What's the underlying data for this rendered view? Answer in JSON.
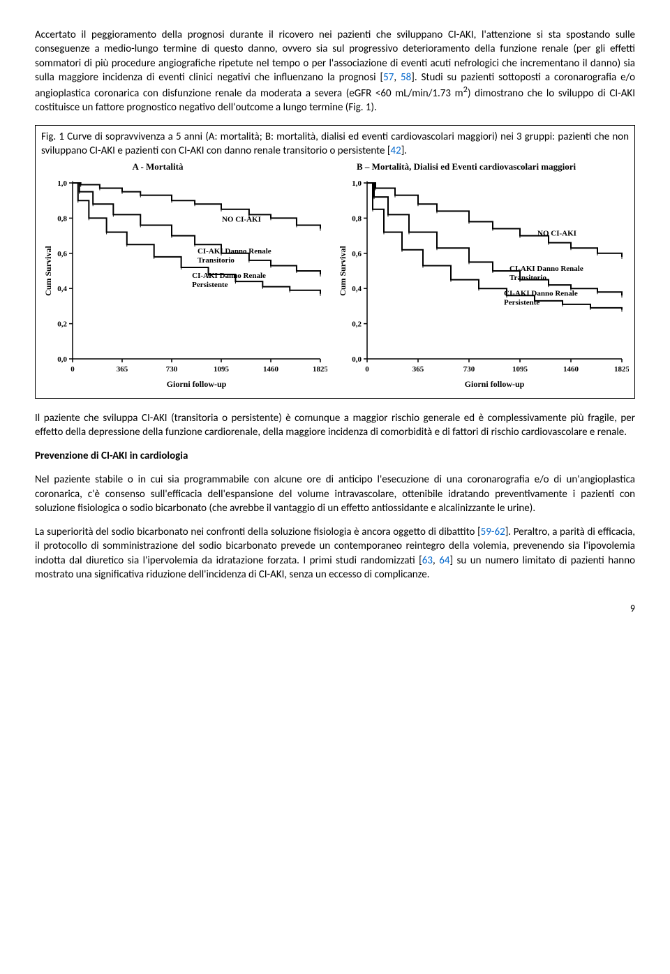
{
  "para1_a": "Accertato il peggioramento della prognosi durante il ricovero nei pazienti che sviluppano CI-AKI, l'attenzione si sta spostando sulle conseguenze a medio-lungo termine di questo danno, ovvero sia sul progressivo deterioramento della funzione renale (per gli effetti sommatori di più procedure angiografiche ripetute nel tempo o per l'associazione di eventi acuti nefrologici che incrementano il danno) sia sulla maggiore incidenza di eventi clinici negativi che influenzano la prognosi [",
  "para1_ref1": "57",
  "para1_b": ", ",
  "para1_ref2": "58",
  "para1_c": "]. Studi su pazienti sottoposti a coronarografia e/o angioplastica coronarica con disfunzione renale da moderata a severa (eGFR <60 mL/min/1.73 m",
  "para1_sup": "2",
  "para1_d": ") dimostrano che lo sviluppo di CI-AKI costituisce un fattore prognostico negativo dell'outcome a lungo termine (Fig. 1).",
  "figcap_a": "Fig. 1 Curve di sopravvivenza a 5 anni (A: mortalità; B: mortalità, dialisi ed eventi cardiovascolari maggiori) nei 3 gruppi: pazienti che non sviluppano CI-AKI e pazienti con CI-AKI con danno renale transitorio o persistente [",
  "figcap_ref": "42",
  "figcap_b": "].",
  "chartA": {
    "title": "A - Mortalità",
    "ylabel": "Cum Survival",
    "xlabel": "Giorni follow-up",
    "xlim": [
      0,
      1825
    ],
    "ylim": [
      0,
      1.0
    ],
    "xticks": [
      0,
      365,
      730,
      1095,
      1460,
      1825
    ],
    "yticks": [
      0.0,
      0.2,
      0.4,
      0.6,
      0.8,
      1.0
    ],
    "yticklabels": [
      "0,0",
      "0,2",
      "0,4",
      "0,6",
      "0,8",
      "1,0"
    ],
    "series": [
      {
        "label": "NO CI-AKI",
        "label_x": 1100,
        "label_y": 0.78,
        "pts": [
          [
            0,
            1.0
          ],
          [
            60,
            0.99
          ],
          [
            200,
            0.97
          ],
          [
            365,
            0.95
          ],
          [
            500,
            0.93
          ],
          [
            730,
            0.9
          ],
          [
            900,
            0.88
          ],
          [
            1095,
            0.85
          ],
          [
            1300,
            0.82
          ],
          [
            1460,
            0.8
          ],
          [
            1650,
            0.76
          ],
          [
            1825,
            0.74
          ]
        ]
      },
      {
        "label": "CI-AKI Danno Renale Transitorio",
        "label_x": 920,
        "label_y": 0.6,
        "pts": [
          [
            0,
            1.0
          ],
          [
            50,
            0.95
          ],
          [
            150,
            0.88
          ],
          [
            300,
            0.82
          ],
          [
            500,
            0.76
          ],
          [
            730,
            0.7
          ],
          [
            900,
            0.65
          ],
          [
            1095,
            0.6
          ],
          [
            1300,
            0.56
          ],
          [
            1460,
            0.53
          ],
          [
            1650,
            0.5
          ],
          [
            1825,
            0.48
          ]
        ]
      },
      {
        "label": "CI-AKI Danno Renale Persistente",
        "label_x": 880,
        "label_y": 0.46,
        "pts": [
          [
            0,
            1.0
          ],
          [
            40,
            0.9
          ],
          [
            120,
            0.8
          ],
          [
            250,
            0.72
          ],
          [
            400,
            0.65
          ],
          [
            600,
            0.58
          ],
          [
            800,
            0.52
          ],
          [
            1000,
            0.48
          ],
          [
            1200,
            0.44
          ],
          [
            1400,
            0.41
          ],
          [
            1600,
            0.39
          ],
          [
            1825,
            0.37
          ]
        ]
      }
    ],
    "line_color": "#000000",
    "line_width": 2,
    "axis_color": "#000000",
    "bg": "#ffffff",
    "font_family": "Times New Roman",
    "tick_fontsize": 11,
    "label_fontsize": 12
  },
  "chartB": {
    "title": "B – Mortalità, Dialisi ed Eventi cardiovascolari maggiori",
    "ylabel": "Cum Survival",
    "xlabel": "Giorni follow-up",
    "xlim": [
      0,
      1825
    ],
    "ylim": [
      0,
      1.0
    ],
    "xticks": [
      0,
      365,
      730,
      1095,
      1460,
      1825
    ],
    "yticks": [
      0.0,
      0.2,
      0.4,
      0.6,
      0.8,
      1.0
    ],
    "yticklabels": [
      "0,0",
      "0,2",
      "0,4",
      "0,6",
      "0,8",
      "1,0"
    ],
    "series": [
      {
        "label": "NO CI-AKI",
        "label_x": 1220,
        "label_y": 0.7,
        "pts": [
          [
            0,
            1.0
          ],
          [
            60,
            0.97
          ],
          [
            200,
            0.93
          ],
          [
            365,
            0.88
          ],
          [
            500,
            0.84
          ],
          [
            730,
            0.78
          ],
          [
            900,
            0.74
          ],
          [
            1095,
            0.7
          ],
          [
            1300,
            0.66
          ],
          [
            1460,
            0.63
          ],
          [
            1650,
            0.6
          ],
          [
            1825,
            0.58
          ]
        ]
      },
      {
        "label": "CI-AKI Danno Renale Transitorio",
        "label_x": 1020,
        "label_y": 0.5,
        "pts": [
          [
            0,
            1.0
          ],
          [
            50,
            0.92
          ],
          [
            150,
            0.82
          ],
          [
            300,
            0.72
          ],
          [
            500,
            0.63
          ],
          [
            730,
            0.55
          ],
          [
            900,
            0.5
          ],
          [
            1095,
            0.45
          ],
          [
            1300,
            0.42
          ],
          [
            1460,
            0.4
          ],
          [
            1650,
            0.38
          ],
          [
            1825,
            0.36
          ]
        ]
      },
      {
        "label": "CI-AKI Danno Renale Persistente",
        "label_x": 980,
        "label_y": 0.36,
        "pts": [
          [
            0,
            1.0
          ],
          [
            40,
            0.85
          ],
          [
            120,
            0.72
          ],
          [
            250,
            0.62
          ],
          [
            400,
            0.53
          ],
          [
            600,
            0.45
          ],
          [
            800,
            0.4
          ],
          [
            1000,
            0.36
          ],
          [
            1200,
            0.33
          ],
          [
            1400,
            0.31
          ],
          [
            1600,
            0.29
          ],
          [
            1825,
            0.28
          ]
        ]
      }
    ],
    "line_color": "#000000",
    "line_width": 2,
    "axis_color": "#000000",
    "bg": "#ffffff",
    "font_family": "Times New Roman",
    "tick_fontsize": 11,
    "label_fontsize": 12
  },
  "para2": "Il paziente che sviluppa CI-AKI (transitoria o persistente) è comunque a maggior rischio generale ed è complessivamente più fragile, per effetto della depressione della funzione cardiorenale, della maggiore incidenza di comorbidità e di fattori di rischio cardiovascolare e renale.",
  "heading": "Prevenzione di CI-AKI in cardiologia",
  "para3": "Nel paziente stabile o in cui sia programmabile con alcune ore di anticipo l'esecuzione di una coronarografia e/o di un'angioplastica coronarica, c'è consenso sull'efficacia dell'espansione del volume intravascolare, ottenibile idratando preventivamente i pazienti con soluzione fisiologica o sodio bicarbonato (che avrebbe il vantaggio di un effetto antiossidante e alcalinizzante le urine).",
  "para4_a": "La superiorità del sodio bicarbonato nei confronti della soluzione fisiologia è ancora oggetto di dibattito [",
  "para4_ref1": "59-62",
  "para4_b": "]. Peraltro, a parità di efficacia, il protocollo di somministrazione del sodio bicarbonato prevede un contemporaneo reintegro della volemia, prevenendo sia l'ipovolemia indotta dal diuretico sia l'ipervolemia da idratazione forzata. I primi studi randomizzati [",
  "para4_ref2": "63",
  "para4_c": ", ",
  "para4_ref3": "64",
  "para4_d": "] su un numero limitato di pazienti hanno mostrato una significativa riduzione dell'incidenza di CI-AKI, senza un eccesso di complicanze.",
  "page_num": "9"
}
